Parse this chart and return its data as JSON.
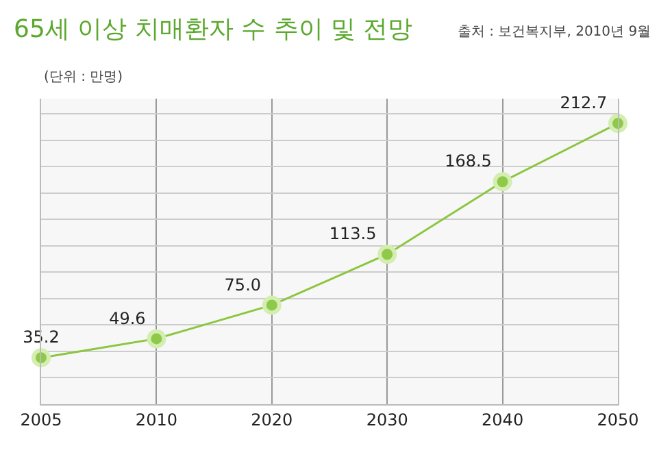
{
  "chart_data": {
    "type": "line",
    "title": "65세 이상 치매환자 수 추이 및 전망",
    "subtitle": "출처 : 보건복지부, 2010년 9월",
    "ylabel": "(단위 : 만명)",
    "categories": [
      "2005",
      "2010",
      "2020",
      "2030",
      "2040",
      "2050"
    ],
    "series": [
      {
        "color": "#8cc63f",
        "values": [
          35.2,
          49.6,
          75.0,
          113.5,
          168.5,
          212.7
        ],
        "value_labels": [
          "35.2",
          "49.6",
          "75.0",
          "113.5",
          "168.5",
          "212.7"
        ]
      }
    ],
    "marker": "circle",
    "line_style": "solid",
    "grid": true,
    "legend": false,
    "tick_labels": "x"
  }
}
